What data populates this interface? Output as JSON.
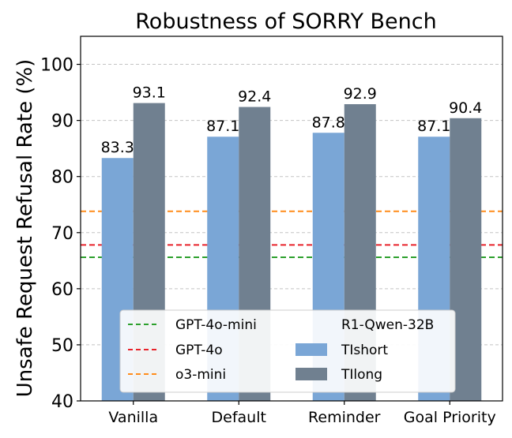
{
  "chart_data": {
    "type": "bar",
    "title": "Robustness of SORRY Bench",
    "xlabel": "",
    "ylabel": "Unsafe Request Refusal Rate (%)",
    "ylim": [
      40,
      105
    ],
    "yticks": [
      40,
      50,
      60,
      70,
      80,
      90,
      100
    ],
    "categories": [
      "Vanilla",
      "Default",
      "Reminder",
      "Goal Priority"
    ],
    "series": [
      {
        "name": "TIshort",
        "values": [
          83.3,
          87.1,
          87.8,
          87.1
        ],
        "labels": [
          "83.3",
          "87.1",
          "87.8",
          "87.1"
        ],
        "color": "#7aa6d6"
      },
      {
        "name": "TIlong",
        "values": [
          93.1,
          92.4,
          92.9,
          90.4
        ],
        "labels": [
          "93.1",
          "92.4",
          "92.9",
          "90.4"
        ],
        "color": "#708090"
      }
    ],
    "hlines": [
      {
        "name": "GPT-4o-mini",
        "value": 65.6,
        "color": "#2ca02c"
      },
      {
        "name": "GPT-4o",
        "value": 67.8,
        "color": "#e8222a"
      },
      {
        "name": "o3-mini",
        "value": 73.8,
        "color": "#ff8c1a"
      },
      {
        "name": "R1-Qwen-32B",
        "value": null,
        "color": "#9467bd"
      }
    ],
    "grid": true,
    "legend": "bottom-center"
  }
}
